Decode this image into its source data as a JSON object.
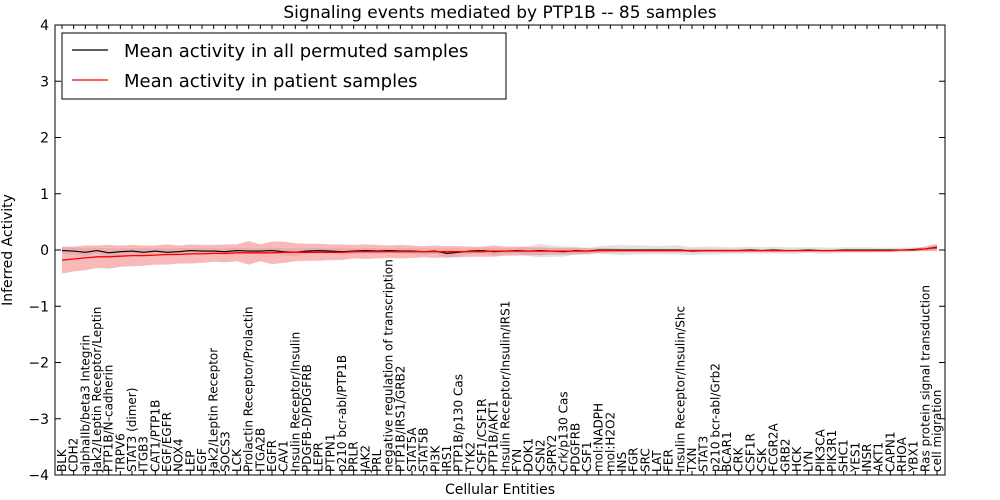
{
  "chart_data": {
    "type": "line",
    "title": "Signaling events mediated by PTP1B -- 85 samples",
    "xlabel": "Cellular Entities",
    "ylabel": "Inferred Activity",
    "ylim": [
      -4,
      4
    ],
    "yticks": [
      -4,
      -3,
      -2,
      -1,
      0,
      1,
      2,
      3,
      4
    ],
    "grid": false,
    "legend_position": "top-left",
    "colors": {
      "permuted": "#000000",
      "patient": "#ff0000",
      "patient_band": "#f08080",
      "permuted_band": "#bfbfbf"
    },
    "categories": [
      "BLK",
      "CDH2",
      "alphaIIb/beta3 Integrin",
      "Jak2/Leptin Receptor/Leptin",
      "PTP1B/N-cadherin",
      "TRPV6",
      "STAT3 (dimer)",
      "ITGB3",
      "CAT1/PTP1B",
      "EGF/EGFR",
      "NOX4",
      "LEP",
      "EGF",
      "Jak2/Leptin Receptor",
      "SOCS3",
      "LCK",
      "Prolactin Receptor/Prolactin",
      "ITGA2B",
      "EGFR",
      "CAV1",
      "Insulin Receptor/Insulin",
      "PDGFB-D/PDGFRB",
      "LEPR",
      "PTPN1",
      "p210 bcr-abl/PTP1B",
      "PRLR",
      "JAK2",
      "PRL",
      "negative regulation of transcription",
      "PTP1B/IRS1/GRB2",
      "STAT5A",
      "STAT5B",
      "PI3K",
      "IRS1",
      "PTP1B/p130 Cas",
      "TYK2",
      "CSF1/CSF1R",
      "PTP1B/AKT1",
      "Insulin Receptor/Insulin/IRS1",
      "FYN",
      "DOK1",
      "CSN2",
      "SPRY2",
      "Crk/p130 Cas",
      "PDGFRB",
      "CSF1",
      "mol:NADPH",
      "mol:H2O2",
      "INS",
      "FGR",
      "SRC",
      "LAT",
      "FER",
      "Insulin Receptor/Insulin/Shc",
      "TXN",
      "STAT3",
      "p210 bcr-abl/Grb2",
      "BCAR1",
      "CRK",
      "CSF1R",
      "CSK",
      "FCGR2A",
      "GRB2",
      "HCK",
      "LYN",
      "PIK3CA",
      "PIK3R1",
      "SHC1",
      "YES1",
      "INSR",
      "AKT1",
      "CAPN1",
      "RHOA",
      "YBX1",
      "Ras protein signal transduction",
      "cell migration"
    ],
    "series": [
      {
        "name": "Mean activity in all permuted samples",
        "color": "#000000",
        "values": [
          -0.01,
          -0.02,
          -0.04,
          -0.01,
          -0.05,
          -0.03,
          -0.02,
          -0.04,
          -0.02,
          -0.04,
          -0.03,
          -0.01,
          -0.02,
          -0.02,
          -0.03,
          -0.01,
          -0.02,
          -0.02,
          -0.01,
          -0.03,
          -0.04,
          -0.02,
          -0.01,
          -0.02,
          -0.03,
          -0.02,
          -0.01,
          -0.02,
          -0.01,
          -0.02,
          -0.02,
          -0.03,
          -0.02,
          -0.06,
          -0.04,
          -0.02,
          -0.01,
          -0.03,
          -0.02,
          -0.01,
          -0.02,
          -0.01,
          -0.02,
          -0.03,
          -0.01,
          -0.02,
          0.0,
          0.0,
          0.0,
          0.0,
          0.0,
          0.0,
          0.0,
          0.0,
          -0.02,
          -0.01,
          -0.01,
          -0.01,
          -0.01,
          0.0,
          -0.01,
          0.0,
          -0.01,
          -0.01,
          0.0,
          -0.01,
          -0.01,
          0.0,
          0.0,
          0.0,
          0.0,
          0.0,
          0.0,
          0.01,
          0.02,
          0.05
        ],
        "band": [
          0.06,
          0.06,
          0.07,
          0.05,
          0.08,
          0.06,
          0.05,
          0.07,
          0.05,
          0.07,
          0.06,
          0.05,
          0.05,
          0.05,
          0.06,
          0.05,
          0.05,
          0.05,
          0.05,
          0.06,
          0.07,
          0.05,
          0.05,
          0.05,
          0.06,
          0.05,
          0.05,
          0.05,
          0.04,
          0.05,
          0.05,
          0.06,
          0.05,
          0.09,
          0.07,
          0.05,
          0.05,
          0.07,
          0.05,
          0.05,
          0.09,
          0.12,
          0.1,
          0.09,
          0.07,
          0.06,
          0.07,
          0.08,
          0.09,
          0.08,
          0.08,
          0.07,
          0.08,
          0.08,
          0.07,
          0.07,
          0.07,
          0.06,
          0.06,
          0.06,
          0.06,
          0.06,
          0.06,
          0.06,
          0.05,
          0.06,
          0.05,
          0.05,
          0.05,
          0.05,
          0.04,
          0.04,
          0.04,
          0.04,
          0.04,
          0.06
        ]
      },
      {
        "name": "Mean activity in patient samples",
        "color": "#ff0000",
        "values": [
          -0.18,
          -0.16,
          -0.14,
          -0.12,
          -0.12,
          -0.11,
          -0.1,
          -0.1,
          -0.09,
          -0.08,
          -0.08,
          -0.07,
          -0.07,
          -0.06,
          -0.06,
          -0.05,
          -0.05,
          -0.05,
          -0.05,
          -0.04,
          -0.04,
          -0.04,
          -0.04,
          -0.04,
          -0.04,
          -0.03,
          -0.03,
          -0.03,
          -0.03,
          -0.03,
          -0.03,
          -0.03,
          -0.03,
          -0.03,
          -0.03,
          -0.03,
          -0.03,
          -0.02,
          -0.02,
          -0.02,
          -0.02,
          -0.02,
          -0.02,
          -0.02,
          -0.02,
          -0.02,
          -0.01,
          -0.01,
          -0.01,
          -0.01,
          -0.01,
          -0.01,
          -0.01,
          -0.01,
          -0.01,
          -0.01,
          -0.01,
          -0.01,
          -0.01,
          -0.01,
          -0.01,
          -0.01,
          -0.01,
          -0.01,
          -0.01,
          -0.01,
          -0.01,
          -0.01,
          -0.01,
          -0.01,
          -0.01,
          -0.01,
          0.0,
          0.0,
          0.02,
          0.04
        ],
        "band": [
          0.24,
          0.22,
          0.22,
          0.2,
          0.21,
          0.19,
          0.19,
          0.18,
          0.17,
          0.18,
          0.16,
          0.17,
          0.16,
          0.15,
          0.16,
          0.15,
          0.21,
          0.15,
          0.2,
          0.19,
          0.16,
          0.15,
          0.15,
          0.14,
          0.14,
          0.12,
          0.13,
          0.12,
          0.11,
          0.12,
          0.11,
          0.1,
          0.11,
          0.1,
          0.1,
          0.09,
          0.09,
          0.1,
          0.08,
          0.08,
          0.07,
          0.07,
          0.06,
          0.06,
          0.06,
          0.05,
          0.04,
          0.04,
          0.03,
          0.03,
          0.03,
          0.03,
          0.03,
          0.03,
          0.03,
          0.03,
          0.03,
          0.03,
          0.03,
          0.03,
          0.02,
          0.03,
          0.02,
          0.02,
          0.02,
          0.02,
          0.02,
          0.02,
          0.02,
          0.02,
          0.02,
          0.02,
          0.02,
          0.02,
          0.04,
          0.06
        ]
      }
    ]
  }
}
